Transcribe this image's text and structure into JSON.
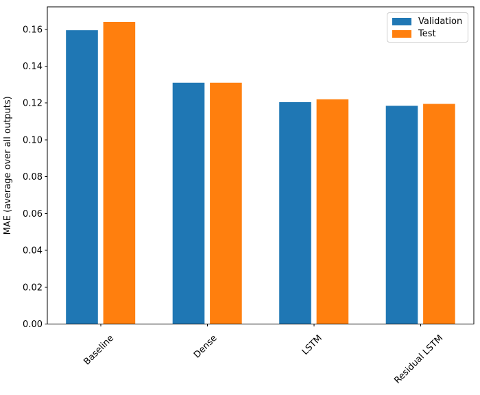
{
  "figure": {
    "background": "#ffffff",
    "plot_background": "#ffffff",
    "spine_color": "#000000",
    "tick_color": "#000000",
    "text_color": "#000000",
    "legend_border_color": "#cccccc",
    "legend_background": "#ffffff"
  },
  "chart_data": {
    "type": "bar",
    "title": "",
    "xlabel": "",
    "ylabel": "MAE (average over all outputs)",
    "categories": [
      "Baseline",
      "Dense",
      "LSTM",
      "Residual LSTM"
    ],
    "series": [
      {
        "name": "Validation",
        "color": "#1f77b4",
        "values": [
          0.1595,
          0.131,
          0.1205,
          0.1185
        ]
      },
      {
        "name": "Test",
        "color": "#ff7f0e",
        "values": [
          0.164,
          0.131,
          0.122,
          0.1195
        ]
      }
    ],
    "ylim": [
      0,
      0.1722
    ],
    "ytick_values": [
      0.0,
      0.02,
      0.04,
      0.06,
      0.08,
      0.1,
      0.12,
      0.14,
      0.16
    ],
    "ytick_labels": [
      "0.00",
      "0.02",
      "0.04",
      "0.06",
      "0.08",
      "0.10",
      "0.12",
      "0.14",
      "0.16"
    ],
    "grid": false,
    "legend": {
      "position": "upper right",
      "entries": [
        "Validation",
        "Test"
      ]
    },
    "bar_width_fraction": 0.3,
    "bar_offset_fraction": 0.175,
    "xtick_rotation_deg": 45
  }
}
